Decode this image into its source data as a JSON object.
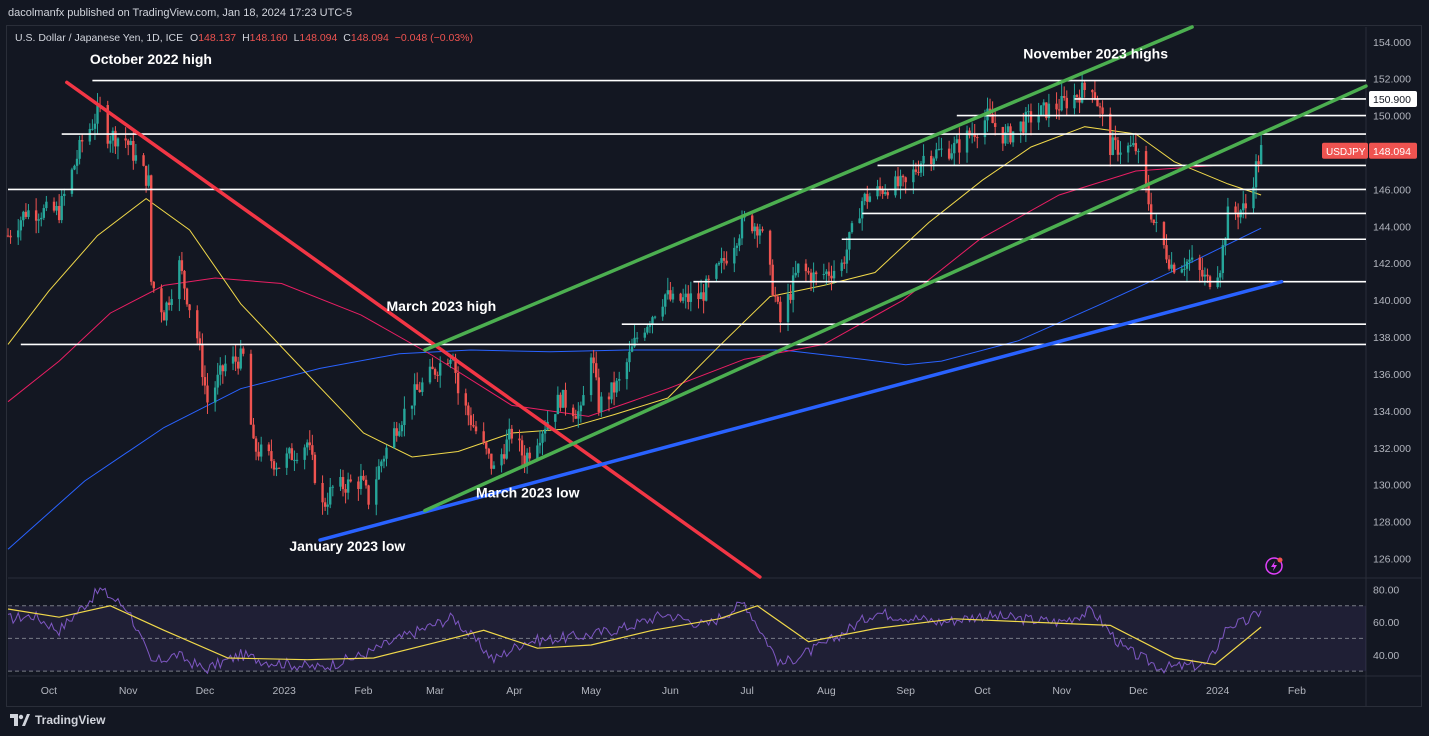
{
  "header": {
    "publisher": "dacolmanfx published on TradingView.com, Jan 18, 2024 17:23 UTC-5",
    "symbol_desc": "U.S. Dollar / Japanese Yen, 1D, ICE",
    "o_label": "O",
    "o_value": "148.137",
    "h_label": "H",
    "h_value": "148.160",
    "l_label": "L",
    "l_value": "148.094",
    "c_label": "C",
    "c_value": "148.094",
    "change": "−0.048 (−0.03%)"
  },
  "footer": {
    "brand": "TradingView",
    "logo_icon": "tradingview-logo-icon"
  },
  "colors": {
    "background": "#131722",
    "up": "#26a69a",
    "down": "#ef5350",
    "resistance": "#ffffff",
    "trend_red": "#f23645",
    "channel": "#4caf50",
    "trend_blue": "#2962ff",
    "ma50": "#f0d84a",
    "ma100": "#e91e63",
    "ma200": "#2962ff",
    "rsi": "#7e57c2",
    "rsi_ma": "#f0d84a"
  },
  "chart_data": [
    {
      "type": "candlestick",
      "symbol": "USDJPY",
      "timeframe": "1D",
      "ylim": [
        125,
        154.8
      ],
      "y_ticks": [
        "154.000",
        "152.000",
        "150.000",
        "148.000",
        "146.000",
        "144.000",
        "142.000",
        "140.000",
        "138.000",
        "136.000",
        "134.000",
        "132.000",
        "130.000",
        "128.000",
        "126.000"
      ],
      "x_ticks": [
        "Oct",
        "Nov",
        "Dec",
        "2023",
        "Feb",
        "Mar",
        "Apr",
        "May",
        "Jun",
        "Jul",
        "Aug",
        "Sep",
        "Oct",
        "Nov",
        "Dec",
        "2024",
        "Feb"
      ],
      "x_tick_dates": [
        "2022-10-01",
        "2022-11-01",
        "2022-12-01",
        "2023-01-01",
        "2023-02-01",
        "2023-03-01",
        "2023-04-01",
        "2023-05-01",
        "2023-06-01",
        "2023-07-01",
        "2023-08-01",
        "2023-09-01",
        "2023-10-01",
        "2023-11-01",
        "2023-12-01",
        "2024-01-01",
        "2024-02-01"
      ],
      "x_range": [
        "2022-09-15",
        "2024-02-28"
      ],
      "price_path": [
        [
          "2022-09-15",
          143.5
        ],
        [
          "2022-09-22",
          144.8
        ],
        [
          "2022-10-05",
          144.8
        ],
        [
          "2022-10-14",
          148.6
        ],
        [
          "2022-10-21",
          150.3
        ],
        [
          "2022-10-24",
          149.0
        ],
        [
          "2022-10-31",
          148.7
        ],
        [
          "2022-11-09",
          146.4
        ],
        [
          "2022-11-10",
          141.0
        ],
        [
          "2022-11-15",
          139.3
        ],
        [
          "2022-11-21",
          141.9
        ],
        [
          "2022-11-28",
          138.0
        ],
        [
          "2022-12-02",
          134.5
        ],
        [
          "2022-12-09",
          136.5
        ],
        [
          "2022-12-16",
          136.9
        ],
        [
          "2022-12-20",
          132.0
        ],
        [
          "2022-12-30",
          131.1
        ],
        [
          "2023-01-10",
          132.3
        ],
        [
          "2023-01-16",
          128.8
        ],
        [
          "2023-01-20",
          129.8
        ],
        [
          "2023-01-31",
          130.2
        ],
        [
          "2023-02-03",
          129.2
        ],
        [
          "2023-02-08",
          131.3
        ],
        [
          "2023-02-14",
          133.2
        ],
        [
          "2023-02-21",
          134.9
        ],
        [
          "2023-03-02",
          136.4
        ],
        [
          "2023-03-08",
          137.3
        ],
        [
          "2023-03-10",
          135.0
        ],
        [
          "2023-03-15",
          133.5
        ],
        [
          "2023-03-24",
          130.8
        ],
        [
          "2023-03-31",
          132.8
        ],
        [
          "2023-04-05",
          131.4
        ],
        [
          "2023-04-19",
          134.7
        ],
        [
          "2023-04-27",
          133.8
        ],
        [
          "2023-05-01",
          137.3
        ],
        [
          "2023-05-04",
          134.3
        ],
        [
          "2023-05-12",
          135.5
        ],
        [
          "2023-05-19",
          138.0
        ],
        [
          "2023-05-30",
          140.3
        ],
        [
          "2023-06-02",
          139.9
        ],
        [
          "2023-06-13",
          140.2
        ],
        [
          "2023-06-21",
          141.9
        ],
        [
          "2023-06-30",
          144.3
        ],
        [
          "2023-07-06",
          144.0
        ],
        [
          "2023-07-14",
          138.8
        ],
        [
          "2023-07-21",
          141.7
        ],
        [
          "2023-07-28",
          141.2
        ],
        [
          "2023-08-07",
          141.9
        ],
        [
          "2023-08-15",
          145.4
        ],
        [
          "2023-08-25",
          146.2
        ],
        [
          "2023-09-01",
          146.2
        ],
        [
          "2023-09-08",
          147.8
        ],
        [
          "2023-09-21",
          148.3
        ],
        [
          "2023-10-03",
          149.9
        ],
        [
          "2023-10-10",
          148.8
        ],
        [
          "2023-10-20",
          149.9
        ],
        [
          "2023-10-26",
          150.3
        ],
        [
          "2023-11-01",
          150.6
        ],
        [
          "2023-11-13",
          151.7
        ],
        [
          "2023-11-20",
          148.3
        ],
        [
          "2023-11-30",
          148.2
        ],
        [
          "2023-12-07",
          144.2
        ],
        [
          "2023-12-14",
          141.9
        ],
        [
          "2023-12-21",
          142.1
        ],
        [
          "2023-12-28",
          141.0
        ],
        [
          "2024-01-02",
          141.9
        ],
        [
          "2024-01-05",
          144.6
        ],
        [
          "2024-01-12",
          145.0
        ],
        [
          "2024-01-16",
          147.2
        ],
        [
          "2024-01-18",
          148.1
        ]
      ],
      "ma50_path": [
        [
          "2022-09-15",
          137.6
        ],
        [
          "2022-10-01",
          140.5
        ],
        [
          "2022-10-20",
          143.5
        ],
        [
          "2022-11-08",
          145.5
        ],
        [
          "2022-11-25",
          143.8
        ],
        [
          "2022-12-15",
          139.8
        ],
        [
          "2023-01-10",
          136.0
        ],
        [
          "2023-02-01",
          132.8
        ],
        [
          "2023-02-20",
          131.5
        ],
        [
          "2023-03-10",
          131.8
        ],
        [
          "2023-03-31",
          132.8
        ],
        [
          "2023-04-20",
          133.0
        ],
        [
          "2023-05-10",
          133.8
        ],
        [
          "2023-05-31",
          134.7
        ],
        [
          "2023-06-20",
          137.5
        ],
        [
          "2023-07-10",
          140.2
        ],
        [
          "2023-07-31",
          140.8
        ],
        [
          "2023-08-20",
          141.5
        ],
        [
          "2023-09-10",
          144.2
        ],
        [
          "2023-10-01",
          146.5
        ],
        [
          "2023-10-20",
          148.3
        ],
        [
          "2023-11-10",
          149.4
        ],
        [
          "2023-11-30",
          149.0
        ],
        [
          "2023-12-15",
          147.5
        ],
        [
          "2024-01-05",
          146.3
        ],
        [
          "2024-01-18",
          145.7
        ]
      ],
      "ma100_path": [
        [
          "2022-09-15",
          134.5
        ],
        [
          "2022-10-05",
          136.7
        ],
        [
          "2022-10-25",
          139.3
        ],
        [
          "2022-11-15",
          140.8
        ],
        [
          "2022-12-05",
          141.2
        ],
        [
          "2022-12-31",
          140.9
        ],
        [
          "2023-01-31",
          139.2
        ],
        [
          "2023-02-28",
          137.0
        ],
        [
          "2023-03-31",
          134.3
        ],
        [
          "2023-04-30",
          133.7
        ],
        [
          "2023-05-31",
          135.2
        ],
        [
          "2023-06-30",
          136.8
        ],
        [
          "2023-07-31",
          137.6
        ],
        [
          "2023-08-31",
          140.0
        ],
        [
          "2023-09-30",
          143.3
        ],
        [
          "2023-10-31",
          145.7
        ],
        [
          "2023-11-30",
          147.0
        ],
        [
          "2023-12-31",
          147.3
        ],
        [
          "2024-01-18",
          147.3
        ]
      ],
      "ma200_path": [
        [
          "2022-09-15",
          126.5
        ],
        [
          "2022-10-15",
          130.2
        ],
        [
          "2022-11-15",
          133.1
        ],
        [
          "2022-12-15",
          135.2
        ],
        [
          "2023-01-15",
          136.3
        ],
        [
          "2023-02-15",
          137.1
        ],
        [
          "2023-03-15",
          137.3
        ],
        [
          "2023-04-15",
          137.2
        ],
        [
          "2023-05-15",
          137.3
        ],
        [
          "2023-06-15",
          137.3
        ],
        [
          "2023-07-15",
          137.3
        ],
        [
          "2023-08-15",
          136.8
        ],
        [
          "2023-09-01",
          136.5
        ],
        [
          "2023-09-15",
          136.7
        ],
        [
          "2023-10-15",
          137.8
        ],
        [
          "2023-11-15",
          139.7
        ],
        [
          "2023-12-15",
          141.6
        ],
        [
          "2024-01-18",
          143.9
        ]
      ],
      "horizontal_levels": [
        {
          "from": "2022-10-18",
          "to": "2024-02-28",
          "y": 151.9
        },
        {
          "from": "2022-10-06",
          "to": "2024-02-28",
          "y": 149.0
        },
        {
          "from": "2022-09-15",
          "to": "2024-02-28",
          "y": 146.0
        },
        {
          "from": "2022-09-20",
          "to": "2024-02-28",
          "y": 137.6
        },
        {
          "from": "2023-05-13",
          "to": "2024-02-28",
          "y": 138.7
        },
        {
          "from": "2023-06-10",
          "to": "2024-02-28",
          "y": 141.0
        },
        {
          "from": "2023-08-15",
          "to": "2024-02-28",
          "y": 144.7
        },
        {
          "from": "2023-08-07",
          "to": "2024-02-28",
          "y": 143.3
        },
        {
          "from": "2023-08-21",
          "to": "2024-02-28",
          "y": 147.3
        },
        {
          "from": "2023-09-21",
          "to": "2024-02-28",
          "y": 150.0
        },
        {
          "from": "2023-11-06",
          "to": "2024-02-28",
          "y": 150.9
        }
      ],
      "trendlines": [
        {
          "name": "red",
          "from": [
            "2022-10-08",
            151.8
          ],
          "to": [
            "2023-07-06",
            125.0
          ]
        },
        {
          "name": "blue",
          "from": [
            "2023-01-15",
            127.0
          ],
          "to": [
            "2024-01-26",
            141.0
          ]
        },
        {
          "name": "channel-lower",
          "from": [
            "2023-02-25",
            128.6
          ],
          "to": [
            "2024-02-28",
            151.6
          ]
        },
        {
          "name": "channel-upper",
          "from": [
            "2023-02-25",
            137.3
          ],
          "to": [
            "2023-12-22",
            154.8
          ]
        }
      ],
      "annotations": [
        {
          "text": "October 2022 high",
          "date": "2022-10-17",
          "y": 152.8
        },
        {
          "text": "November 2023 highs",
          "date": "2023-10-17",
          "y": 153.1
        },
        {
          "text": "March 2023 high",
          "date": "2023-02-10",
          "y": 139.4
        },
        {
          "text": "March 2023 low",
          "date": "2023-03-17",
          "y": 129.3
        },
        {
          "text": "January 2023 low",
          "date": "2023-01-03",
          "y": 126.4
        }
      ],
      "price_labels": [
        {
          "text": "150.900",
          "y": 150.9,
          "style": "white"
        },
        {
          "text": "USDJPY",
          "value": "148.094",
          "y": 148.094,
          "style": "red"
        }
      ]
    },
    {
      "type": "line",
      "name": "RSI",
      "ylim": [
        27,
        87
      ],
      "y_ticks": [
        "80.00",
        "60.00",
        "40.00"
      ],
      "bands": [
        70,
        50,
        30
      ],
      "rsi_path": [
        [
          "2022-09-15",
          62
        ],
        [
          "2022-09-25",
          64
        ],
        [
          "2022-10-05",
          55
        ],
        [
          "2022-10-21",
          80
        ],
        [
          "2022-11-01",
          68
        ],
        [
          "2022-11-10",
          35
        ],
        [
          "2022-11-20",
          40
        ],
        [
          "2022-12-01",
          31
        ],
        [
          "2022-12-15",
          40
        ],
        [
          "2022-12-25",
          36
        ],
        [
          "2023-01-15",
          32
        ],
        [
          "2023-02-01",
          40
        ],
        [
          "2023-02-15",
          50
        ],
        [
          "2023-03-08",
          63
        ],
        [
          "2023-03-24",
          37
        ],
        [
          "2023-04-05",
          48
        ],
        [
          "2023-04-30",
          52
        ],
        [
          "2023-05-15",
          57
        ],
        [
          "2023-05-30",
          65
        ],
        [
          "2023-06-15",
          58
        ],
        [
          "2023-06-30",
          72
        ],
        [
          "2023-07-14",
          34
        ],
        [
          "2023-07-31",
          46
        ],
        [
          "2023-08-20",
          66
        ],
        [
          "2023-09-15",
          60
        ],
        [
          "2023-10-01",
          64
        ],
        [
          "2023-10-31",
          60
        ],
        [
          "2023-11-13",
          67
        ],
        [
          "2023-11-25",
          44
        ],
        [
          "2023-12-10",
          32
        ],
        [
          "2023-12-28",
          34
        ],
        [
          "2024-01-05",
          58
        ],
        [
          "2024-01-12",
          60
        ],
        [
          "2024-01-18",
          67
        ]
      ],
      "rsi_ma_path": [
        [
          "2022-09-15",
          68
        ],
        [
          "2022-10-05",
          63
        ],
        [
          "2022-10-25",
          70
        ],
        [
          "2022-11-15",
          55
        ],
        [
          "2022-12-10",
          38
        ],
        [
          "2023-01-10",
          37
        ],
        [
          "2023-02-05",
          38
        ],
        [
          "2023-02-28",
          47
        ],
        [
          "2023-03-20",
          55
        ],
        [
          "2023-04-10",
          44
        ],
        [
          "2023-05-01",
          46
        ],
        [
          "2023-05-25",
          55
        ],
        [
          "2023-06-20",
          62
        ],
        [
          "2023-07-05",
          70
        ],
        [
          "2023-07-25",
          48
        ],
        [
          "2023-08-20",
          56
        ],
        [
          "2023-09-20",
          62
        ],
        [
          "2023-10-20",
          60
        ],
        [
          "2023-11-20",
          58
        ],
        [
          "2023-12-15",
          38
        ],
        [
          "2023-12-31",
          34
        ],
        [
          "2024-01-18",
          57
        ]
      ]
    }
  ]
}
